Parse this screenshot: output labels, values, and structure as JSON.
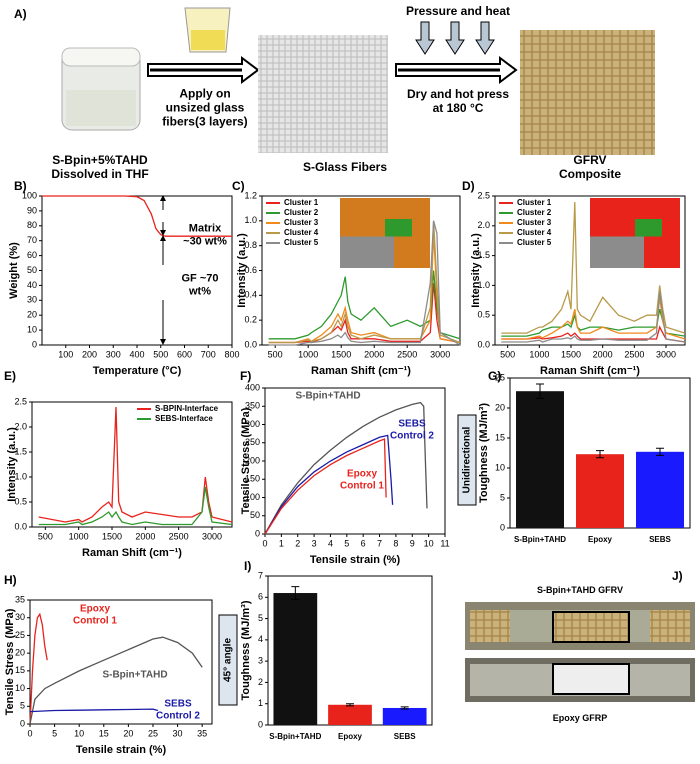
{
  "panel_a": {
    "label": "A)",
    "step1": "Apply on\nunsized glass\nfibers(3 layers)",
    "step2_top": "Pressure and heat",
    "step2": "Dry and hot press\nat 180 °C",
    "captions": [
      "S-Bpin+5%TAHD\nDissolved in THF",
      "S-Glass Fibers",
      "GFRV\nComposite"
    ]
  },
  "panel_j": {
    "label": "J)",
    "top": "S-Bpin+TAHD GFRV",
    "bottom": "Epoxy GFRP"
  },
  "chart_data": [
    {
      "type": "line",
      "panel_label": "B)",
      "xlabel": "Temperature (°C)",
      "ylabel": "Weight (%)",
      "xlim": [
        0,
        800
      ],
      "xticks": [
        100,
        200,
        300,
        400,
        500,
        600,
        700,
        800
      ],
      "ylim": [
        0,
        100
      ],
      "yticks": [
        0,
        10,
        20,
        30,
        40,
        50,
        60,
        70,
        80,
        90,
        100
      ],
      "x": [
        0,
        350,
        400,
        430,
        460,
        480,
        500,
        520,
        600,
        800
      ],
      "series": [
        {
          "name": null,
          "color": "#e8231c",
          "values": [
            100,
            100,
            99.5,
            97,
            88,
            78,
            74,
            73,
            73,
            73
          ]
        }
      ],
      "annotations": [
        "Matrix\n~30 wt%",
        "GF ~70\nwt%"
      ]
    },
    {
      "type": "line",
      "panel_label": "C)",
      "xlabel": "Raman Shift (cm⁻¹)",
      "ylabel": "Intensity (a.u.)",
      "legend": "upper left",
      "xlim": [
        300,
        3300
      ],
      "xticks": [
        500,
        1000,
        1500,
        2000,
        2500,
        3000
      ],
      "ylim": [
        0,
        1.2
      ],
      "yticks": [
        {
          "value": 0,
          "label": "0.0"
        },
        0.2,
        0.4,
        0.6,
        0.8,
        {
          "value": 1,
          "label": "1.0"
        },
        1.2
      ],
      "x": [
        400,
        800,
        1000,
        1050,
        1200,
        1350,
        1450,
        1500,
        1560,
        1600,
        1650,
        1800,
        2000,
        2250,
        2500,
        2700,
        2850,
        2900,
        2950,
        3000,
        3300
      ],
      "series": [
        {
          "name": "Cluster 1",
          "color": "#e8231c",
          "values": [
            0.02,
            0.02,
            0.03,
            0.02,
            0.05,
            0.1,
            0.15,
            0.12,
            0.2,
            0.1,
            0.05,
            0.05,
            0.05,
            0.03,
            0.03,
            0.03,
            0.1,
            0.5,
            0.2,
            0.05,
            0.02
          ]
        },
        {
          "name": "Cluster 2",
          "color": "#2e9a2e",
          "values": [
            0.05,
            0.05,
            0.08,
            0.1,
            0.15,
            0.25,
            0.35,
            0.4,
            0.55,
            0.35,
            0.25,
            0.2,
            0.3,
            0.15,
            0.2,
            0.15,
            0.2,
            0.6,
            0.3,
            0.1,
            0.05
          ]
        },
        {
          "name": "Cluster 3",
          "color": "#f08a1c",
          "values": [
            0.02,
            0.02,
            0.05,
            0.03,
            0.08,
            0.15,
            0.25,
            0.2,
            0.3,
            0.2,
            0.1,
            0.08,
            0.1,
            0.05,
            0.05,
            0.05,
            0.2,
            0.9,
            0.4,
            0.05,
            0.02
          ]
        },
        {
          "name": "Cluster 4",
          "color": "#b89a4a",
          "values": [
            0.02,
            0.02,
            0.04,
            0.03,
            0.05,
            0.1,
            0.2,
            0.15,
            0.25,
            0.15,
            0.08,
            0.05,
            0.08,
            0.05,
            0.05,
            0.05,
            0.3,
            1.0,
            0.5,
            0.08,
            0.02
          ]
        },
        {
          "name": "Cluster 5",
          "color": "#8c8c8c",
          "values": [
            0,
            0,
            0.02,
            0.02,
            0.03,
            0.05,
            0.08,
            0.06,
            0.1,
            0.06,
            0.03,
            0.02,
            0.03,
            0.02,
            0.02,
            0.02,
            0.5,
            1.0,
            0.9,
            0.1,
            0
          ]
        }
      ]
    },
    {
      "type": "line",
      "panel_label": "D)",
      "xlabel": "Raman Shift (cm⁻¹)",
      "ylabel": "Intensity (a.u.)",
      "legend": "upper left",
      "xlim": [
        300,
        3300
      ],
      "xticks": [
        500,
        1000,
        1500,
        2000,
        2500,
        3000
      ],
      "ylim": [
        0,
        2.5
      ],
      "yticks": [
        {
          "value": 0,
          "label": "0.0"
        },
        0.5,
        {
          "value": 1,
          "label": "1.0"
        },
        1.5,
        {
          "value": 2,
          "label": "2.0"
        },
        2.5
      ],
      "x": [
        400,
        800,
        1000,
        1050,
        1200,
        1350,
        1450,
        1500,
        1560,
        1600,
        1650,
        1800,
        2000,
        2250,
        2500,
        2700,
        2850,
        2900,
        2950,
        3000,
        3300
      ],
      "series": [
        {
          "name": "Cluster 1",
          "color": "#e8231c",
          "values": [
            0.1,
            0.1,
            0.12,
            0.1,
            0.12,
            0.15,
            0.2,
            0.15,
            0.2,
            0.15,
            0.1,
            0.1,
            0.1,
            0.1,
            0.1,
            0.1,
            0.1,
            0.3,
            0.2,
            0.1,
            0.05
          ]
        },
        {
          "name": "Cluster 2",
          "color": "#2e9a2e",
          "values": [
            0.15,
            0.15,
            0.2,
            0.25,
            0.3,
            0.3,
            0.35,
            0.3,
            0.5,
            0.3,
            0.25,
            0.3,
            0.3,
            0.25,
            0.3,
            0.3,
            0.3,
            0.6,
            0.4,
            0.2,
            0.15
          ]
        },
        {
          "name": "Cluster 3",
          "color": "#f08a1c",
          "values": [
            0.1,
            0.1,
            0.15,
            0.12,
            0.2,
            0.3,
            0.4,
            0.35,
            0.6,
            0.3,
            0.2,
            0.2,
            0.3,
            0.2,
            0.2,
            0.2,
            0.3,
            0.8,
            0.4,
            0.2,
            0.1
          ]
        },
        {
          "name": "Cluster 4",
          "color": "#b89a4a",
          "values": [
            0.2,
            0.2,
            0.3,
            0.3,
            0.4,
            0.6,
            0.9,
            0.6,
            2.4,
            0.6,
            0.5,
            0.4,
            0.8,
            0.5,
            0.4,
            0.5,
            0.5,
            1.0,
            0.6,
            0.3,
            0.2
          ]
        },
        {
          "name": "Cluster 5",
          "color": "#8c8c8c",
          "values": [
            0.05,
            0.05,
            0.08,
            0.05,
            0.1,
            0.1,
            0.12,
            0.1,
            0.15,
            0.1,
            0.08,
            0.08,
            0.1,
            0.08,
            0.08,
            0.08,
            0.2,
            0.9,
            0.5,
            0.1,
            0.05
          ]
        }
      ]
    },
    {
      "type": "line",
      "panel_label": "E)",
      "xlabel": "Raman Shift (cm⁻¹)",
      "ylabel": "Intensity (a.u.)",
      "legend": "upper right",
      "xlim": [
        300,
        3300
      ],
      "xticks": [
        500,
        1000,
        1500,
        2000,
        2500,
        3000
      ],
      "ylim": [
        0,
        2.5
      ],
      "yticks": [
        {
          "value": 0,
          "label": "0.0"
        },
        0.5,
        {
          "value": 1,
          "label": "1.0"
        },
        1.5,
        {
          "value": 2,
          "label": "2.0"
        },
        2.5
      ],
      "x": [
        400,
        800,
        1000,
        1050,
        1200,
        1350,
        1450,
        1500,
        1560,
        1600,
        1650,
        1800,
        2000,
        2250,
        2500,
        2700,
        2850,
        2900,
        2950,
        3000,
        3300
      ],
      "series": [
        {
          "name": "S-BPIN-Interface",
          "color": "#e8231c",
          "values": [
            0.2,
            0.1,
            0.15,
            0.1,
            0.2,
            0.4,
            0.5,
            0.4,
            2.4,
            0.5,
            0.3,
            0.2,
            0.3,
            0.25,
            0.2,
            0.2,
            0.3,
            1.0,
            0.5,
            0.2,
            0.1
          ]
        },
        {
          "name": "SEBS-Interface",
          "color": "#2e9a2e",
          "values": [
            0.05,
            0.05,
            0.1,
            0.05,
            0.1,
            0.2,
            0.3,
            0.2,
            0.3,
            0.2,
            0.1,
            0.05,
            0.1,
            0.05,
            0.05,
            0.05,
            0.3,
            0.8,
            0.4,
            0.1,
            0.05
          ]
        }
      ]
    },
    {
      "type": "line",
      "panel_label": "F)",
      "xlabel": "Tensile strain (%)",
      "ylabel": "Tensile Stress (MPa)",
      "xlim": [
        0,
        11
      ],
      "xticks": [
        0,
        1,
        2,
        3,
        4,
        5,
        6,
        7,
        8,
        9,
        10,
        11
      ],
      "ylim": [
        0,
        400
      ],
      "yticks": [
        0,
        50,
        100,
        150,
        200,
        250,
        300,
        350,
        400
      ],
      "series": [
        {
          "name": "S-Bpin+TAHD",
          "color": "#555555",
          "x": [
            0,
            1,
            2,
            3,
            4,
            5,
            6,
            7,
            8,
            9,
            9.5,
            9.7,
            9.8,
            9.9
          ],
          "values": [
            0,
            80,
            140,
            190,
            230,
            265,
            295,
            320,
            340,
            355,
            360,
            350,
            200,
            70
          ]
        },
        {
          "name": "SEBS\nControl 2",
          "color": "#1a1aa8",
          "x": [
            0,
            1,
            2,
            3,
            4,
            5,
            6,
            7,
            7.5,
            7.7,
            7.8
          ],
          "values": [
            0,
            75,
            130,
            170,
            200,
            225,
            245,
            265,
            270,
            150,
            80
          ]
        },
        {
          "name": "Epoxy\nControl 1",
          "color": "#e8231c",
          "x": [
            0,
            1,
            2,
            3,
            4,
            5,
            6,
            7,
            7.3,
            7.4
          ],
          "values": [
            0,
            70,
            120,
            160,
            190,
            215,
            235,
            255,
            260,
            100
          ]
        }
      ],
      "annotations": [
        "Unidirectional"
      ]
    },
    {
      "type": "bar",
      "panel_label": "G)",
      "ylabel": "Toughness (MJ/m³)",
      "categories": [
        "S-Bpin+TAHD",
        "Epoxy",
        "SEBS"
      ],
      "values": [
        22.8,
        12.3,
        12.7
      ],
      "errors": [
        1.2,
        0.6,
        0.6
      ],
      "colors": [
        "#111111",
        "#e8231c",
        "#1a1aff"
      ],
      "ylim": [
        0,
        25
      ],
      "yticks": [
        0,
        5,
        10,
        15,
        20,
        25
      ]
    },
    {
      "type": "line",
      "panel_label": "H)",
      "xlabel": "Tensile strain (%)",
      "ylabel": "Tensile Stress (MPa)",
      "xlim": [
        0,
        37
      ],
      "xticks": [
        0,
        5,
        10,
        15,
        20,
        25,
        30,
        35
      ],
      "ylim": [
        0,
        35
      ],
      "yticks": [
        0,
        5,
        10,
        15,
        20,
        25,
        30,
        35
      ],
      "series": [
        {
          "name": "Epoxy\nControl 1",
          "color": "#e8231c",
          "x": [
            0,
            0.5,
            1,
            1.5,
            2,
            2.5,
            3,
            3.5
          ],
          "values": [
            0,
            15,
            25,
            30,
            31,
            28,
            22,
            18
          ]
        },
        {
          "name": "S-Bpin+TAHD",
          "color": "#555555",
          "x": [
            0,
            1,
            3,
            5,
            10,
            15,
            20,
            25,
            27,
            30,
            33,
            35
          ],
          "values": [
            0,
            7,
            10,
            11.5,
            15,
            18,
            21,
            24,
            24.5,
            23,
            20,
            16
          ]
        },
        {
          "name": "SEBS\nControl 2",
          "color": "#1a1aa8",
          "x": [
            0,
            5,
            10,
            15,
            20,
            25,
            26
          ],
          "values": [
            3.5,
            3.8,
            3.9,
            4.0,
            4.1,
            4.2,
            3.8
          ]
        }
      ],
      "annotations": [
        "45° angle"
      ]
    },
    {
      "type": "bar",
      "panel_label": "I)",
      "ylabel": "Toughness (MJ/m³)",
      "categories": [
        "S-Bpin+TAHD",
        "Epoxy",
        "SEBS"
      ],
      "values": [
        6.2,
        0.95,
        0.8
      ],
      "errors": [
        0.3,
        0.05,
        0.05
      ],
      "colors": [
        "#111111",
        "#e8231c",
        "#1a1aff"
      ],
      "ylim": [
        0,
        7
      ],
      "yticks": [
        0,
        1,
        2,
        3,
        4,
        5,
        6,
        7
      ]
    }
  ]
}
